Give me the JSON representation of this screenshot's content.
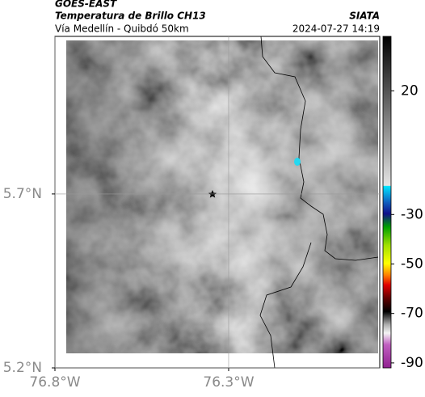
{
  "header": {
    "title": "GOES-EAST",
    "subtitle": "Temperatura de Brillo CH13",
    "region": "Vía Medellín - Quibdó 50km",
    "source": "SIATA",
    "datetime": "2024-07-27 14:19"
  },
  "map": {
    "xlim": [
      -76.8,
      -75.865
    ],
    "ylim": [
      5.2,
      6.153
    ],
    "xticks": [
      {
        "value": -76.8,
        "label": "76.8°W"
      },
      {
        "value": -76.3,
        "label": "76.3°W"
      }
    ],
    "yticks": [
      {
        "value": 5.7,
        "label": "5.7°N"
      },
      {
        "value": 5.2,
        "label": "5.2°N"
      }
    ],
    "grid": true
  },
  "colorbar": {
    "lim": [
      -92,
      42
    ],
    "ticks": [
      20,
      -30,
      -50,
      -70,
      -90
    ]
  }
}
